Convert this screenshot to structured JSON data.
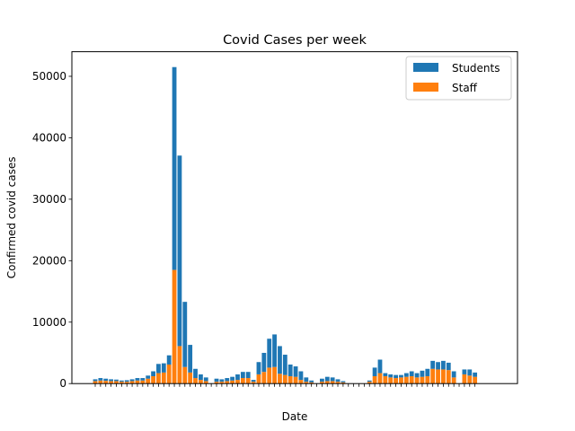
{
  "chart_data": {
    "type": "bar",
    "stacked": true,
    "title": "Covid Cases per week",
    "xlabel": "Date",
    "ylabel": "Confirmed covid cases",
    "ylim": [
      0,
      54000
    ],
    "yticks": [
      0,
      10000,
      20000,
      30000,
      40000,
      50000
    ],
    "legend": {
      "position": "top-right"
    },
    "colors": {
      "Students": "#1f77b4",
      "Staff": "#ff7f0e"
    },
    "series": [
      {
        "name": "Students",
        "values": [
          300,
          400,
          350,
          300,
          250,
          200,
          250,
          300,
          400,
          400,
          500,
          800,
          1500,
          1500,
          1500,
          33000,
          31000,
          10600,
          4500,
          1500,
          900,
          600,
          0,
          500,
          400,
          500,
          600,
          900,
          1000,
          1000,
          300,
          2000,
          3100,
          4700,
          5300,
          4500,
          3300,
          1900,
          1700,
          1400,
          700,
          300,
          0,
          500,
          700,
          600,
          400,
          200,
          0,
          0,
          0,
          0,
          200,
          1400,
          2200,
          500,
          500,
          500,
          400,
          600,
          800,
          700,
          1000,
          1200,
          1300,
          1200,
          1400,
          1200,
          1000,
          0,
          800,
          1000,
          700
        ]
      },
      {
        "name": "Staff",
        "values": [
          400,
          500,
          450,
          400,
          400,
          300,
          300,
          400,
          500,
          500,
          800,
          1200,
          1700,
          1800,
          3100,
          18500,
          6100,
          2700,
          1800,
          900,
          600,
          400,
          0,
          300,
          300,
          400,
          500,
          600,
          900,
          900,
          300,
          1500,
          1900,
          2600,
          2700,
          1600,
          1400,
          1200,
          1100,
          600,
          300,
          200,
          0,
          300,
          400,
          400,
          300,
          200,
          0,
          0,
          0,
          0,
          300,
          1200,
          1700,
          1200,
          1000,
          900,
          1000,
          1100,
          1200,
          1000,
          1100,
          1200,
          2400,
          2300,
          2300,
          2200,
          1000,
          0,
          1500,
          1300,
          1100
        ]
      }
    ]
  }
}
